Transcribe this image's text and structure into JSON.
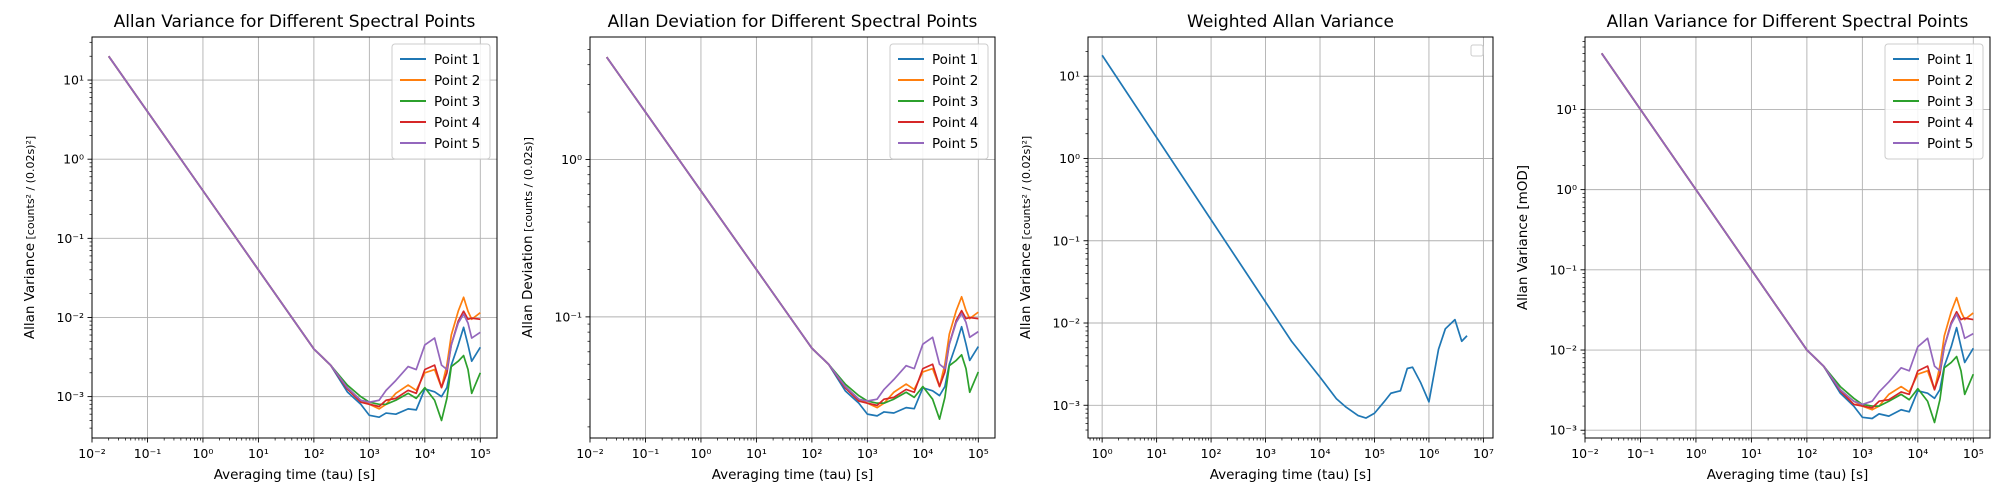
{
  "chart_data": [
    {
      "type": "line",
      "title": "Allan Variance for Different Spectral Points",
      "xlabel": "Averaging time (tau) [s]",
      "ylabel": "Allan Variance",
      "ylabel_unit": "counts² / (0.02s)²",
      "xscale": "log",
      "yscale": "log",
      "xlim": [
        0.01,
        200000
      ],
      "ylim": [
        0.0003,
        35
      ],
      "xticks": [
        0.01,
        0.1,
        1,
        10,
        100,
        1000,
        10000,
        100000
      ],
      "xtick_labels": [
        "10⁻²",
        "10⁻¹",
        "10⁰",
        "10¹",
        "10²",
        "10³",
        "10⁴",
        "10⁵"
      ],
      "yticks": [
        0.001,
        0.01,
        0.1,
        1,
        10
      ],
      "ytick_labels": [
        "10⁻³",
        "10⁻²",
        "10⁻¹",
        "10⁰",
        "10¹"
      ],
      "grid": true,
      "legend_position": "top-right",
      "series": [
        {
          "name": "Point 1",
          "color": "#1f77b4",
          "x": [
            0.02,
            1,
            10,
            100,
            200,
            400,
            700,
            1000,
            1500,
            2000,
            3000,
            5000,
            7000,
            10000,
            15000,
            20000,
            25000,
            30000,
            40000,
            50000,
            60000,
            70000,
            100000
          ],
          "y": [
            20,
            0.4,
            0.04,
            0.004,
            0.0025,
            0.00115,
            0.0008,
            0.00058,
            0.00055,
            0.00062,
            0.0006,
            0.0007,
            0.00068,
            0.00125,
            0.00115,
            0.001,
            0.0013,
            0.0025,
            0.0045,
            0.0075,
            0.0045,
            0.0028,
            0.0042
          ]
        },
        {
          "name": "Point 2",
          "color": "#ff7f0e",
          "x": [
            0.02,
            1,
            10,
            100,
            200,
            400,
            700,
            1000,
            1500,
            2000,
            3000,
            5000,
            7000,
            10000,
            15000,
            20000,
            25000,
            30000,
            40000,
            50000,
            60000,
            70000,
            100000
          ],
          "y": [
            20,
            0.4,
            0.04,
            0.004,
            0.0025,
            0.0013,
            0.0009,
            0.0008,
            0.0007,
            0.0008,
            0.0011,
            0.0014,
            0.0012,
            0.002,
            0.0022,
            0.0013,
            0.0025,
            0.006,
            0.012,
            0.018,
            0.012,
            0.0095,
            0.0115
          ]
        },
        {
          "name": "Point 3",
          "color": "#2ca02c",
          "x": [
            0.02,
            1,
            10,
            100,
            200,
            400,
            700,
            1000,
            1500,
            2000,
            3000,
            5000,
            7000,
            10000,
            15000,
            20000,
            25000,
            30000,
            40000,
            50000,
            60000,
            70000,
            100000
          ],
          "y": [
            20,
            0.4,
            0.04,
            0.004,
            0.0025,
            0.0014,
            0.001,
            0.00085,
            0.0008,
            0.0008,
            0.0009,
            0.0011,
            0.00095,
            0.0013,
            0.0009,
            0.0005,
            0.00095,
            0.0024,
            0.0028,
            0.0033,
            0.0022,
            0.0011,
            0.002
          ]
        },
        {
          "name": "Point 4",
          "color": "#d62728",
          "x": [
            0.02,
            1,
            10,
            100,
            200,
            400,
            700,
            1000,
            1500,
            2000,
            3000,
            5000,
            7000,
            10000,
            15000,
            20000,
            25000,
            30000,
            40000,
            50000,
            60000,
            70000,
            100000
          ],
          "y": [
            20,
            0.4,
            0.04,
            0.004,
            0.0025,
            0.00125,
            0.00085,
            0.0008,
            0.00075,
            0.0009,
            0.00095,
            0.0012,
            0.0011,
            0.0022,
            0.0025,
            0.0013,
            0.002,
            0.0045,
            0.009,
            0.012,
            0.0095,
            0.0098,
            0.0095
          ]
        },
        {
          "name": "Point 5",
          "color": "#9467bd",
          "x": [
            0.02,
            1,
            10,
            100,
            200,
            400,
            700,
            1000,
            1500,
            2000,
            3000,
            5000,
            7000,
            10000,
            15000,
            20000,
            25000,
            30000,
            40000,
            50000,
            60000,
            70000,
            100000
          ],
          "y": [
            20,
            0.4,
            0.04,
            0.004,
            0.0025,
            0.0013,
            0.0009,
            0.00085,
            0.0009,
            0.0012,
            0.0016,
            0.0024,
            0.0022,
            0.0045,
            0.0055,
            0.0025,
            0.0022,
            0.0045,
            0.0085,
            0.011,
            0.0085,
            0.0055,
            0.0065
          ]
        }
      ]
    },
    {
      "type": "line",
      "title": "Allan Deviation for Different Spectral Points",
      "xlabel": "Averaging time (tau) [s]",
      "ylabel": "Allan Deviation",
      "ylabel_unit": "counts / (0.02s)",
      "xscale": "log",
      "yscale": "log",
      "xlim": [
        0.01,
        200000
      ],
      "ylim": [
        0.017,
        6
      ],
      "xticks": [
        0.01,
        0.1,
        1,
        10,
        100,
        1000,
        10000,
        100000
      ],
      "xtick_labels": [
        "10⁻²",
        "10⁻¹",
        "10⁰",
        "10¹",
        "10²",
        "10³",
        "10⁴",
        "10⁵"
      ],
      "yticks": [
        0.1,
        1
      ],
      "ytick_labels": [
        "10⁻¹",
        "10⁰"
      ],
      "grid": true,
      "legend_position": "top-right",
      "series": [
        {
          "name": "Point 1",
          "color": "#1f77b4",
          "x": [
            0.02,
            1,
            10,
            100,
            200,
            400,
            700,
            1000,
            1500,
            2000,
            3000,
            5000,
            7000,
            10000,
            15000,
            20000,
            25000,
            30000,
            40000,
            50000,
            60000,
            70000,
            100000
          ],
          "y": [
            4.47,
            0.632,
            0.2,
            0.0632,
            0.05,
            0.0339,
            0.0283,
            0.0241,
            0.0235,
            0.0249,
            0.0245,
            0.0265,
            0.0261,
            0.0354,
            0.0339,
            0.0316,
            0.0361,
            0.05,
            0.0671,
            0.0866,
            0.0671,
            0.0529,
            0.0648
          ]
        },
        {
          "name": "Point 2",
          "color": "#ff7f0e",
          "x": [
            0.02,
            1,
            10,
            100,
            200,
            400,
            700,
            1000,
            1500,
            2000,
            3000,
            5000,
            7000,
            10000,
            15000,
            20000,
            25000,
            30000,
            40000,
            50000,
            60000,
            70000,
            100000
          ],
          "y": [
            4.47,
            0.632,
            0.2,
            0.0632,
            0.05,
            0.0361,
            0.03,
            0.0283,
            0.0265,
            0.0283,
            0.0332,
            0.0374,
            0.0346,
            0.0447,
            0.0469,
            0.0361,
            0.05,
            0.0775,
            0.1095,
            0.1342,
            0.1095,
            0.0975,
            0.1072
          ]
        },
        {
          "name": "Point 3",
          "color": "#2ca02c",
          "x": [
            0.02,
            1,
            10,
            100,
            200,
            400,
            700,
            1000,
            1500,
            2000,
            3000,
            5000,
            7000,
            10000,
            15000,
            20000,
            25000,
            30000,
            40000,
            50000,
            60000,
            70000,
            100000
          ],
          "y": [
            4.47,
            0.632,
            0.2,
            0.0632,
            0.05,
            0.0374,
            0.0316,
            0.0292,
            0.0283,
            0.0283,
            0.03,
            0.0332,
            0.0308,
            0.0361,
            0.03,
            0.0224,
            0.0308,
            0.049,
            0.0529,
            0.0574,
            0.0469,
            0.0332,
            0.0447
          ]
        },
        {
          "name": "Point 4",
          "color": "#d62728",
          "x": [
            0.02,
            1,
            10,
            100,
            200,
            400,
            700,
            1000,
            1500,
            2000,
            3000,
            5000,
            7000,
            10000,
            15000,
            20000,
            25000,
            30000,
            40000,
            50000,
            60000,
            70000,
            100000
          ],
          "y": [
            4.47,
            0.632,
            0.2,
            0.0632,
            0.05,
            0.0354,
            0.0292,
            0.0283,
            0.0274,
            0.03,
            0.0308,
            0.0346,
            0.0332,
            0.0469,
            0.05,
            0.0361,
            0.0447,
            0.0671,
            0.0949,
            0.1095,
            0.0975,
            0.099,
            0.0975
          ]
        },
        {
          "name": "Point 5",
          "color": "#9467bd",
          "x": [
            0.02,
            1,
            10,
            100,
            200,
            400,
            700,
            1000,
            1500,
            2000,
            3000,
            5000,
            7000,
            10000,
            15000,
            20000,
            25000,
            30000,
            40000,
            50000,
            60000,
            70000,
            100000
          ],
          "y": [
            4.47,
            0.632,
            0.2,
            0.0632,
            0.05,
            0.0361,
            0.03,
            0.0292,
            0.03,
            0.0346,
            0.04,
            0.049,
            0.0469,
            0.0671,
            0.0742,
            0.05,
            0.0469,
            0.0671,
            0.0922,
            0.1049,
            0.0922,
            0.0742,
            0.0806
          ]
        }
      ]
    },
    {
      "type": "line",
      "title": "Weighted Allan Variance",
      "xlabel": "Averaging time (tau) [s]",
      "ylabel": "Allan Variance",
      "ylabel_unit": "counts² / (0.02s)²",
      "xscale": "log",
      "yscale": "log",
      "xlim": [
        0.55,
        15000000
      ],
      "ylim": [
        0.0004,
        30
      ],
      "xticks": [
        1,
        10,
        100,
        1000,
        10000,
        100000,
        1000000,
        10000000
      ],
      "xtick_labels": [
        "10⁰",
        "10¹",
        "10²",
        "10³",
        "10⁴",
        "10⁵",
        "10⁶",
        "10⁷"
      ],
      "yticks": [
        0.001,
        0.01,
        0.1,
        1,
        10
      ],
      "ytick_labels": [
        "10⁻³",
        "10⁻²",
        "10⁻¹",
        "10⁰",
        "10¹"
      ],
      "grid": true,
      "legend_position": "top-right",
      "legend_empty": true,
      "series": [
        {
          "name": "",
          "color": "#1f77b4",
          "x": [
            1,
            3,
            10,
            30,
            100,
            300,
            1000,
            3000,
            10000,
            20000,
            30000,
            50000,
            70000,
            100000,
            150000,
            200000,
            300000,
            400000,
            500000,
            700000,
            1000000,
            1500000,
            2000000,
            3000000,
            4000000,
            5000000
          ],
          "y": [
            18,
            6,
            1.8,
            0.6,
            0.18,
            0.06,
            0.018,
            0.006,
            0.0022,
            0.0012,
            0.00095,
            0.00075,
            0.0007,
            0.0008,
            0.0011,
            0.0014,
            0.0015,
            0.0028,
            0.0029,
            0.0019,
            0.0011,
            0.0048,
            0.0085,
            0.011,
            0.006,
            0.007
          ]
        }
      ]
    },
    {
      "type": "line",
      "title": "Allan Variance for Different Spectral Points",
      "xlabel": "Averaging time (tau) [s]",
      "ylabel": "Allan Variance [mOD]",
      "xscale": "log",
      "yscale": "log",
      "xlim": [
        0.01,
        200000
      ],
      "ylim": [
        0.0008,
        80
      ],
      "xticks": [
        0.01,
        0.1,
        1,
        10,
        100,
        1000,
        10000,
        100000
      ],
      "xtick_labels": [
        "10⁻²",
        "10⁻¹",
        "10⁰",
        "10¹",
        "10²",
        "10³",
        "10⁴",
        "10⁵"
      ],
      "yticks": [
        0.001,
        0.01,
        0.1,
        1,
        10
      ],
      "ytick_labels": [
        "10⁻³",
        "10⁻²",
        "10⁻¹",
        "10⁰",
        "10¹"
      ],
      "grid": true,
      "legend_position": "top-right",
      "series": [
        {
          "name": "Point 1",
          "color": "#1f77b4",
          "x": [
            0.02,
            1,
            10,
            100,
            200,
            400,
            700,
            1000,
            1500,
            2000,
            3000,
            5000,
            7000,
            10000,
            15000,
            20000,
            25000,
            30000,
            40000,
            50000,
            60000,
            70000,
            100000
          ],
          "y": [
            50,
            1,
            0.1,
            0.01,
            0.0063,
            0.0029,
            0.002,
            0.00145,
            0.0014,
            0.0016,
            0.0015,
            0.0018,
            0.0017,
            0.0031,
            0.0029,
            0.0025,
            0.0032,
            0.0063,
            0.011,
            0.019,
            0.011,
            0.007,
            0.0105
          ]
        },
        {
          "name": "Point 2",
          "color": "#ff7f0e",
          "x": [
            0.02,
            1,
            10,
            100,
            200,
            400,
            700,
            1000,
            1500,
            2000,
            3000,
            5000,
            7000,
            10000,
            15000,
            20000,
            25000,
            30000,
            40000,
            50000,
            60000,
            70000,
            100000
          ],
          "y": [
            50,
            1,
            0.1,
            0.01,
            0.0063,
            0.0032,
            0.0023,
            0.002,
            0.0018,
            0.002,
            0.0028,
            0.0035,
            0.003,
            0.005,
            0.0055,
            0.0032,
            0.0063,
            0.015,
            0.03,
            0.045,
            0.03,
            0.024,
            0.029
          ]
        },
        {
          "name": "Point 3",
          "color": "#2ca02c",
          "x": [
            0.02,
            1,
            10,
            100,
            200,
            400,
            700,
            1000,
            1500,
            2000,
            3000,
            5000,
            7000,
            10000,
            15000,
            20000,
            25000,
            30000,
            40000,
            50000,
            60000,
            70000,
            100000
          ],
          "y": [
            50,
            1,
            0.1,
            0.01,
            0.0063,
            0.0035,
            0.0025,
            0.0021,
            0.002,
            0.002,
            0.0023,
            0.0028,
            0.0024,
            0.0033,
            0.0023,
            0.00125,
            0.0024,
            0.006,
            0.007,
            0.0083,
            0.0055,
            0.0028,
            0.005
          ]
        },
        {
          "name": "Point 4",
          "color": "#d62728",
          "x": [
            0.02,
            1,
            10,
            100,
            200,
            400,
            700,
            1000,
            1500,
            2000,
            3000,
            5000,
            7000,
            10000,
            15000,
            20000,
            25000,
            30000,
            40000,
            50000,
            60000,
            70000,
            100000
          ],
          "y": [
            50,
            1,
            0.1,
            0.01,
            0.0063,
            0.0031,
            0.0021,
            0.002,
            0.0019,
            0.0023,
            0.0024,
            0.003,
            0.0028,
            0.0055,
            0.0063,
            0.0032,
            0.005,
            0.011,
            0.022,
            0.03,
            0.024,
            0.025,
            0.024
          ]
        },
        {
          "name": "Point 5",
          "color": "#9467bd",
          "x": [
            0.02,
            1,
            10,
            100,
            200,
            400,
            700,
            1000,
            1500,
            2000,
            3000,
            5000,
            7000,
            10000,
            15000,
            20000,
            25000,
            30000,
            40000,
            50000,
            60000,
            70000,
            100000
          ],
          "y": [
            50,
            1,
            0.1,
            0.01,
            0.0063,
            0.0032,
            0.0023,
            0.0021,
            0.0023,
            0.003,
            0.004,
            0.006,
            0.0055,
            0.011,
            0.014,
            0.0063,
            0.0055,
            0.011,
            0.021,
            0.028,
            0.021,
            0.014,
            0.016
          ]
        }
      ]
    }
  ]
}
